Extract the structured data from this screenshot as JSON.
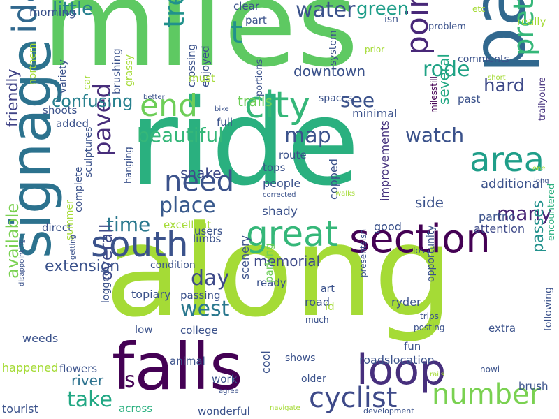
{
  "word_cloud": {
    "words": [
      {
        "text": "along",
        "color": "#a5db36"
      },
      {
        "text": "ride",
        "color": "#2ab07f"
      },
      {
        "text": "miles",
        "color": "#5ec962"
      },
      {
        "text": "park",
        "color": "#31688e"
      },
      {
        "text": "signage",
        "color": "#2c728e"
      },
      {
        "text": "falls",
        "color": "#440154"
      },
      {
        "text": "loop",
        "color": "#472f7d"
      },
      {
        "text": "section",
        "color": "#440154"
      },
      {
        "text": "south",
        "color": "#3b528b"
      },
      {
        "text": "great",
        "color": "#35b779"
      },
      {
        "text": "area",
        "color": "#1f9e89"
      },
      {
        "text": "pretty",
        "color": "#35b779"
      },
      {
        "text": "city",
        "color": "#35b779"
      },
      {
        "text": "end",
        "color": "#6ece58"
      },
      {
        "text": "need",
        "color": "#3b528b"
      },
      {
        "text": "paved",
        "color": "#472d7b"
      },
      {
        "text": "idaho",
        "color": "#31688e"
      },
      {
        "text": "point",
        "color": "#482878"
      },
      {
        "text": "tree",
        "color": "#21918c"
      },
      {
        "text": "number",
        "color": "#7ad151"
      },
      {
        "text": "cyclist",
        "color": "#3e4a89"
      },
      {
        "text": "t",
        "color": "#21918c"
      },
      {
        "text": "place",
        "color": "#38598c"
      },
      {
        "text": "beautiful",
        "color": "#35b779"
      },
      {
        "text": "map",
        "color": "#3b528b"
      },
      {
        "text": "watch",
        "color": "#3b528b"
      },
      {
        "text": "rode",
        "color": "#20a386"
      },
      {
        "text": "hard",
        "color": "#3e4a89"
      },
      {
        "text": "water",
        "color": "#3b528b"
      },
      {
        "text": "green",
        "color": "#1f9e89"
      },
      {
        "text": "see",
        "color": "#3b528b"
      },
      {
        "text": "several",
        "color": "#22a884"
      },
      {
        "text": "many",
        "color": "#482475"
      },
      {
        "text": "west",
        "color": "#2a788e"
      },
      {
        "text": "day",
        "color": "#3e4a89"
      },
      {
        "text": "take",
        "color": "#22a884"
      },
      {
        "text": "time",
        "color": "#2a788e"
      },
      {
        "text": "passes",
        "color": "#21918c"
      },
      {
        "text": "overall",
        "color": "#3e4a89"
      },
      {
        "text": "available",
        "color": "#7ad151"
      },
      {
        "text": "friendly",
        "color": "#414487"
      },
      {
        "text": "little",
        "color": "#27808e"
      },
      {
        "text": "confusing",
        "color": "#27808e"
      },
      {
        "text": "extension",
        "color": "#3b528b"
      },
      {
        "text": "memorial",
        "color": "#3e4a89"
      },
      {
        "text": "downtown",
        "color": "#3b528b"
      },
      {
        "text": "trails",
        "color": "#6ece58"
      },
      {
        "text": "snake",
        "color": "#3e4a89"
      },
      {
        "text": "river",
        "color": "#2c728e"
      },
      {
        "text": "s",
        "color": "#440154"
      },
      {
        "text": "side",
        "color": "#3b528b"
      },
      {
        "text": "additional",
        "color": "#3b528b"
      },
      {
        "text": "attention",
        "color": "#3e4a89"
      },
      {
        "text": "partno",
        "color": "#3b528b"
      },
      {
        "text": "encountered",
        "color": "#2ab07f"
      },
      {
        "text": "trailyoure",
        "color": "#46327e"
      },
      {
        "text": "milesstill",
        "color": "#440154"
      },
      {
        "text": "improvements",
        "color": "#46327e"
      },
      {
        "text": "copped",
        "color": "#3b528b"
      },
      {
        "text": "people",
        "color": "#3b528b"
      },
      {
        "text": "route",
        "color": "#3b528b"
      },
      {
        "text": "tops",
        "color": "#3b528b"
      },
      {
        "text": "corrected",
        "color": "#3b528b"
      },
      {
        "text": "shady",
        "color": "#3b528b"
      },
      {
        "text": "good",
        "color": "#3b528b"
      },
      {
        "text": "lost",
        "color": "#3b528b"
      },
      {
        "text": "excellent",
        "color": "#a5db36"
      },
      {
        "text": "users",
        "color": "#3b528b"
      },
      {
        "text": "limbs",
        "color": "#3b528b"
      },
      {
        "text": "direct",
        "color": "#3b528b"
      },
      {
        "text": "complete",
        "color": "#3b528b"
      },
      {
        "text": "summer",
        "color": "#a5db36"
      },
      {
        "text": "sculptures",
        "color": "#3b528b"
      },
      {
        "text": "hanging",
        "color": "#3b528b"
      },
      {
        "text": "condition",
        "color": "#3b528b"
      },
      {
        "text": "topiary",
        "color": "#3b528b"
      },
      {
        "text": "passing",
        "color": "#3b528b"
      },
      {
        "text": "ready",
        "color": "#3b528b"
      },
      {
        "text": "road",
        "color": "#3b528b"
      },
      {
        "text": "art",
        "color": "#3b528b"
      },
      {
        "text": "id",
        "color": "#a5db36"
      },
      {
        "text": "much",
        "color": "#3b528b"
      },
      {
        "text": "ryder",
        "color": "#3b528b"
      },
      {
        "text": "opportunity",
        "color": "#3b528b"
      },
      {
        "text": "posting",
        "color": "#3b528b"
      },
      {
        "text": "trips",
        "color": "#3b528b"
      },
      {
        "text": "presentsisn",
        "color": "#3b528b"
      },
      {
        "text": "scenery",
        "color": "#3b528b"
      },
      {
        "text": "parking",
        "color": "#6ece58"
      },
      {
        "text": "college",
        "color": "#3b528b"
      },
      {
        "text": "low",
        "color": "#3b528b"
      },
      {
        "text": "extra",
        "color": "#3b528b"
      },
      {
        "text": "following",
        "color": "#3b528b"
      },
      {
        "text": "fun",
        "color": "#3b528b"
      },
      {
        "text": "roadslocation",
        "color": "#3b528b"
      },
      {
        "text": "logged",
        "color": "#3b528b"
      },
      {
        "text": "weeds",
        "color": "#3b528b"
      },
      {
        "text": "happened",
        "color": "#a5db36"
      },
      {
        "text": "flowers",
        "color": "#3b528b"
      },
      {
        "text": "animal",
        "color": "#3b528b"
      },
      {
        "text": "work",
        "color": "#3b528b"
      },
      {
        "text": "cool",
        "color": "#3b528b"
      },
      {
        "text": "shows",
        "color": "#3b528b"
      },
      {
        "text": "older",
        "color": "#3b528b"
      },
      {
        "text": "agree",
        "color": "#3b528b"
      },
      {
        "text": "nowi",
        "color": "#3b528b"
      },
      {
        "text": "rails",
        "color": "#a5db36"
      },
      {
        "text": "brush",
        "color": "#3b528b"
      },
      {
        "text": "tourist",
        "color": "#3b528b"
      },
      {
        "text": "across",
        "color": "#2ab07f"
      },
      {
        "text": "wonderful",
        "color": "#3b528b"
      },
      {
        "text": "navigate",
        "color": "#a5db36"
      },
      {
        "text": "development",
        "color": "#3b528b"
      },
      {
        "text": "disappointing",
        "color": "#3b528b"
      },
      {
        "text": "getting",
        "color": "#3b528b"
      },
      {
        "text": "better",
        "color": "#3b528b"
      },
      {
        "text": "bike",
        "color": "#3b528b"
      },
      {
        "text": "full",
        "color": "#3b528b"
      },
      {
        "text": "minimal",
        "color": "#3b528b"
      },
      {
        "text": "spaces",
        "color": "#3b528b"
      },
      {
        "text": "past",
        "color": "#3b528b"
      },
      {
        "text": "short",
        "color": "#a5db36"
      },
      {
        "text": "comments",
        "color": "#3b528b"
      },
      {
        "text": "problem",
        "color": "#3b528b"
      },
      {
        "text": "really",
        "color": "#a5db36"
      },
      {
        "text": "etc",
        "color": "#a5db36"
      },
      {
        "text": "isn",
        "color": "#3b528b"
      },
      {
        "text": "system",
        "color": "#3b528b"
      },
      {
        "text": "prior",
        "color": "#a5db36"
      },
      {
        "text": "portions",
        "color": "#3b528b"
      },
      {
        "text": "clear",
        "color": "#3b528b"
      },
      {
        "text": "part",
        "color": "#3b528b"
      },
      {
        "text": "crossing",
        "color": "#3b528b"
      },
      {
        "text": "enjoyed",
        "color": "#3b528b"
      },
      {
        "text": "must",
        "color": "#a5db36"
      },
      {
        "text": "grassy",
        "color": "#a5db36"
      },
      {
        "text": "brushing",
        "color": "#3b528b"
      },
      {
        "text": "variety",
        "color": "#3b528b"
      },
      {
        "text": "car",
        "color": "#a5db36"
      },
      {
        "text": "northern",
        "color": "#a5db36"
      },
      {
        "text": "morning",
        "color": "#3b528b"
      },
      {
        "text": "shoots",
        "color": "#3b528b"
      },
      {
        "text": "added",
        "color": "#3b528b"
      },
      {
        "text": "one",
        "color": "#a5db36"
      },
      {
        "text": "long",
        "color": "#3b528b"
      },
      {
        "text": "walks",
        "color": "#a5db36"
      }
    ]
  }
}
